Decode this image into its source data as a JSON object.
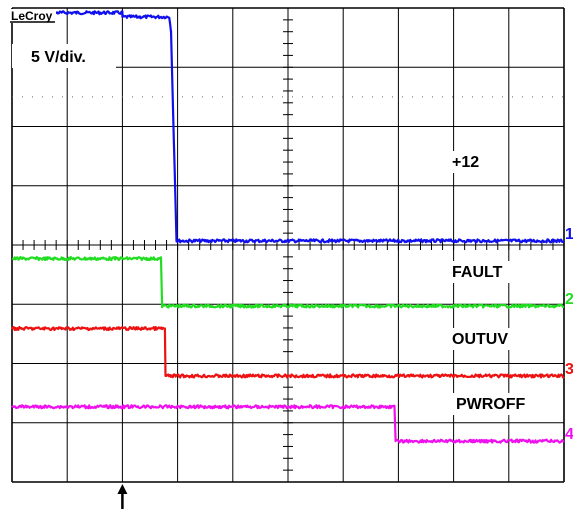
{
  "scope": {
    "brand": "LeCroy",
    "scale_label": "5 V/div."
  },
  "chart_data": {
    "type": "line",
    "title": "",
    "xlabel": "",
    "ylabel": "",
    "grid": true,
    "x_divisions": 10,
    "y_divisions": 8,
    "xlim": [
      0,
      10
    ],
    "ylim": [
      0,
      8
    ],
    "trigger_marker_x": 2.0,
    "series": [
      {
        "name": "+12",
        "channel": "1",
        "color": "#1010ee",
        "points": [
          [
            0,
            7.92
          ],
          [
            2.0,
            7.92
          ],
          [
            2.0,
            7.85
          ],
          [
            2.85,
            7.85
          ],
          [
            2.88,
            7.62
          ],
          [
            2.98,
            4.07
          ],
          [
            10,
            4.07
          ]
        ]
      },
      {
        "name": "FAULT",
        "channel": "2",
        "color": "#22dd22",
        "points": [
          [
            0,
            3.77
          ],
          [
            2.7,
            3.77
          ],
          [
            2.72,
            2.97
          ],
          [
            10,
            2.97
          ]
        ]
      },
      {
        "name": "OUTUV",
        "channel": "3",
        "color": "#ee1111",
        "points": [
          [
            0,
            2.59
          ],
          [
            2.77,
            2.59
          ],
          [
            2.78,
            1.79
          ],
          [
            10,
            1.79
          ]
        ]
      },
      {
        "name": "PWROFF",
        "channel": "4",
        "color": "#ee11ee",
        "points": [
          [
            0,
            1.27
          ],
          [
            6.93,
            1.27
          ],
          [
            6.95,
            0.69
          ],
          [
            10,
            0.69
          ]
        ]
      }
    ]
  }
}
